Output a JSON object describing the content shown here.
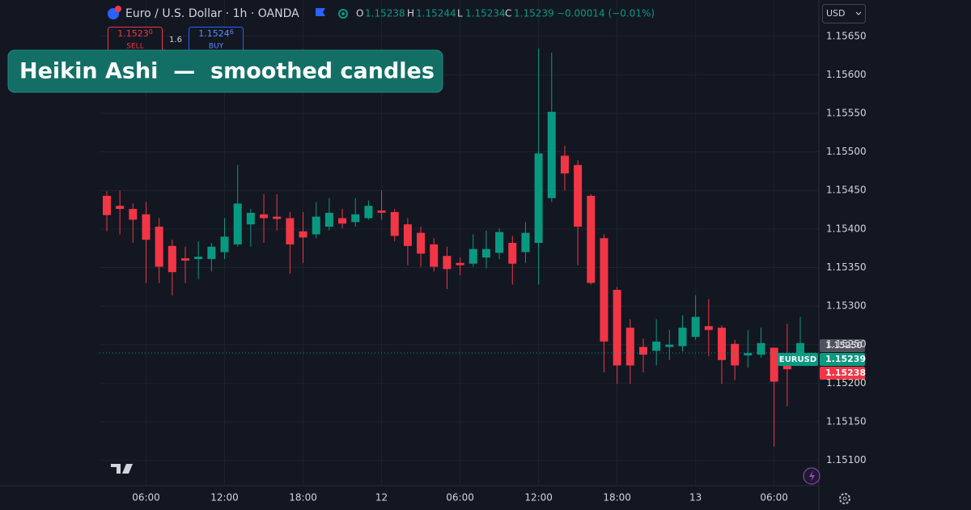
{
  "header": {
    "symbol": "Euro / U.S. Dollar · 1h · OANDA",
    "o_label": "O",
    "o_value": "1.15238",
    "h_label": "H",
    "h_value": "1.15244",
    "l_label": "L",
    "l_value": "1.15234",
    "c_label": "C",
    "c_value": "1.15239",
    "change": "−0.00014 (−0.01%)"
  },
  "trade": {
    "sell_price": "1.1523",
    "sell_pip": "0",
    "sell_label": "SELL",
    "spread": "1.6",
    "buy_price": "1.1524",
    "buy_pip": "6",
    "buy_label": "BUY"
  },
  "currency": "USD",
  "banner": "Heikin Ashi  —  smoothed candles",
  "price_tags": {
    "crosshair": "1.15250",
    "symbol": "EURUSD",
    "last": "1.15239",
    "bid": "1.15238"
  },
  "chart_data": {
    "type": "candlestick",
    "categories": [
      null,
      null,
      null,
      "06:00",
      null,
      null,
      null,
      null,
      null,
      "12:00",
      null,
      null,
      null,
      null,
      null,
      "18:00",
      null,
      null,
      null,
      null,
      null,
      "12",
      null,
      null,
      null,
      null,
      null,
      "06:00",
      null,
      null,
      null,
      null,
      null,
      "12:00",
      null,
      null,
      null,
      null,
      null,
      "18:00",
      null,
      null,
      null,
      null,
      null,
      "13",
      null,
      null,
      null,
      null,
      null,
      "06:00",
      null,
      null
    ],
    "open": [
      1.15443,
      1.1543,
      1.15426,
      1.15419,
      1.15403,
      1.15378,
      1.15362,
      1.15361,
      1.15361,
      1.1537,
      1.1538,
      1.15406,
      1.15419,
      1.15416,
      1.15414,
      1.15397,
      1.15393,
      1.15403,
      1.15414,
      1.15409,
      1.15414,
      1.15424,
      1.15422,
      1.15406,
      1.15395,
      1.1538,
      1.15365,
      1.15356,
      1.15355,
      1.15363,
      1.15369,
      1.15382,
      1.1537,
      1.15382,
      1.1544,
      1.15495,
      1.15483,
      1.15443,
      1.15388,
      1.15321,
      1.15272,
      1.15247,
      1.15242,
      1.15247,
      1.15248,
      1.1526,
      1.15274,
      1.15272,
      1.15251,
      1.15236,
      1.15237,
      1.15246,
      1.15231,
      1.15239
    ],
    "high": [
      1.15449,
      1.1545,
      1.15433,
      1.15435,
      1.15414,
      1.15386,
      1.15377,
      1.15384,
      1.15382,
      1.15414,
      1.15483,
      1.15426,
      1.15445,
      1.15445,
      1.15422,
      1.15422,
      1.15435,
      1.1544,
      1.15426,
      1.1544,
      1.15437,
      1.1545,
      1.15426,
      1.15414,
      1.15403,
      1.15388,
      1.15377,
      1.15363,
      1.15393,
      1.15398,
      1.15401,
      1.15391,
      1.15409,
      1.15634,
      1.15629,
      1.15508,
      1.15489,
      1.15445,
      1.15393,
      1.15325,
      1.15283,
      1.15258,
      1.15283,
      1.15269,
      1.15288,
      1.15314,
      1.15309,
      1.15275,
      1.15256,
      1.15269,
      1.15272,
      1.15246,
      1.15277,
      1.15286
    ],
    "low": [
      1.15397,
      1.15393,
      1.15382,
      1.1533,
      1.1533,
      1.15314,
      1.1533,
      1.15335,
      1.15345,
      1.15361,
      1.15377,
      1.15377,
      1.15382,
      1.15398,
      1.15342,
      1.15356,
      1.15388,
      1.15398,
      1.15401,
      1.15403,
      1.15412,
      1.15412,
      1.15384,
      1.15353,
      1.15351,
      1.15345,
      1.15322,
      1.1534,
      1.15351,
      1.15349,
      1.15361,
      1.15328,
      1.15356,
      1.15328,
      1.15435,
      1.1545,
      1.15353,
      1.15328,
      1.15214,
      1.15199,
      1.15199,
      1.15214,
      1.15223,
      1.1523,
      1.15241,
      1.15256,
      1.15235,
      1.15199,
      1.15204,
      1.1522,
      1.15233,
      1.15118,
      1.1517,
      1.15235
    ],
    "close": [
      1.15418,
      1.15426,
      1.15412,
      1.15386,
      1.15351,
      1.15344,
      1.15359,
      1.15364,
      1.15377,
      1.1539,
      1.15433,
      1.15421,
      1.15414,
      1.15413,
      1.1538,
      1.15389,
      1.15416,
      1.15421,
      1.15407,
      1.15419,
      1.1543,
      1.15421,
      1.15391,
      1.15378,
      1.15368,
      1.15351,
      1.15348,
      1.15353,
      1.15374,
      1.15374,
      1.15396,
      1.15355,
      1.15395,
      1.15498,
      1.15552,
      1.15472,
      1.15403,
      1.1533,
      1.15254,
      1.15223,
      1.15223,
      1.15237,
      1.15254,
      1.1525,
      1.15272,
      1.15286,
      1.15269,
      1.1523,
      1.15223,
      1.15239,
      1.15252,
      1.15202,
      1.15218,
      1.15252
    ],
    "up_color": "#089981",
    "down_color": "#f23645",
    "ylim": [
      1.15067,
      1.15697
    ],
    "yticks": [
      {
        "value": 1.1565,
        "label": "1.15650"
      },
      {
        "value": 1.156,
        "label": "1.15600"
      },
      {
        "value": 1.1555,
        "label": "1.15550"
      },
      {
        "value": 1.155,
        "label": "1.15500"
      },
      {
        "value": 1.1545,
        "label": "1.15450"
      },
      {
        "value": 1.154,
        "label": "1.15400"
      },
      {
        "value": 1.1535,
        "label": "1.15350"
      },
      {
        "value": 1.153,
        "label": "1.15300"
      },
      {
        "value": 1.1525,
        "label": "1.15250"
      },
      {
        "value": 1.152,
        "label": "1.15200"
      },
      {
        "value": 1.1515,
        "label": "1.15150"
      },
      {
        "value": 1.151,
        "label": "1.15100"
      }
    ],
    "grid": true
  }
}
